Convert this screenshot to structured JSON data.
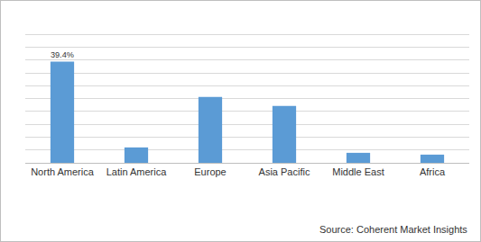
{
  "chart_data": {
    "type": "bar",
    "categories": [
      "North America",
      "Latin America",
      "Europe",
      "Asia Pacific",
      "Middle East",
      "Africa"
    ],
    "values": [
      39.4,
      6.0,
      25.7,
      22.2,
      3.9,
      3.2
    ],
    "value_labels": [
      "39.4%",
      null,
      null,
      null,
      null,
      null
    ],
    "data_labels": true,
    "color": "#5b9bd5",
    "ylim": [
      0,
      55
    ],
    "yticks": [
      0,
      5,
      10,
      15,
      20,
      25,
      30,
      35,
      40,
      45,
      50,
      55
    ],
    "grid": true,
    "tick_labels": "x",
    "source": "Source: Coherent Market Insights"
  }
}
